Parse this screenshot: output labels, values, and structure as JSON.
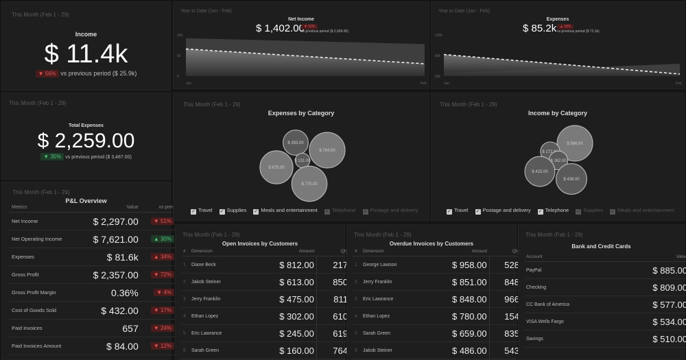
{
  "period_month": "This Month (Feb 1 - 29)",
  "period_ytd": "Year to Date (Jan - Feb)",
  "income": {
    "title": "Income",
    "value": "$ 11.4k",
    "delta": "▼ 56%",
    "vs": "vs previous period ($ 25.9k)"
  },
  "total_expenses": {
    "title": "Total Expenses",
    "value": "$ 2,259.00",
    "delta": "▼ 35%",
    "vs": "vs previous period ($ 3,487.00)"
  },
  "net_income": {
    "title": "Net Income",
    "value": "$ 1,402.00",
    "delta": "▼ 53%",
    "vs": "vs previous period ($ 2,909.00)"
  },
  "expenses_ytd": {
    "title": "Expenses",
    "value": "$ 85.2k",
    "delta": "▲ 18%",
    "vs": "vs previous period ($ 72.1k)"
  },
  "colors": {
    "red": "#e05555",
    "green": "#4cc27a",
    "bg": "#1e1e1e"
  },
  "chart_data": [
    {
      "type": "area",
      "x": [
        "Jan",
        "Feb"
      ],
      "yticks": [
        "10k",
        "5k",
        "0"
      ],
      "ylim": [
        0,
        10000
      ],
      "series": [
        {
          "values": [
            6600,
            3000
          ],
          "style": "dashed"
        },
        {
          "values": [
            9200,
            7800
          ],
          "style": "area-previous"
        }
      ]
    },
    {
      "type": "area",
      "x": [
        "Jan",
        "Feb"
      ],
      "yticks": [
        "100k",
        "80k",
        "60k"
      ],
      "ylim": [
        60000,
        100000
      ],
      "series": [
        {
          "values": [
            81000,
            62000
          ],
          "style": "dashed"
        },
        {
          "values": [
            63000,
            72000
          ],
          "style": "area-previous"
        }
      ]
    },
    {
      "type": "bubble",
      "title": "Expenses by Category",
      "bubbles": [
        {
          "label": "$ 393.00",
          "value": 393
        },
        {
          "label": "$ 784.00",
          "value": 784
        },
        {
          "label": "$ 131.00",
          "value": 131
        },
        {
          "label": "$ 675.00",
          "value": 675
        },
        {
          "label": "$ 770.00",
          "value": 770
        }
      ],
      "legend": [
        {
          "label": "Travel",
          "active": true
        },
        {
          "label": "Supplies",
          "active": true
        },
        {
          "label": "Meals and entertainment",
          "active": true
        },
        {
          "label": "Telephone",
          "active": false
        },
        {
          "label": "Postage and delivery",
          "active": false
        }
      ]
    },
    {
      "type": "bubble",
      "title": "Income by Category",
      "bubbles": [
        {
          "label": "$ 586.00",
          "value": 586
        },
        {
          "label": "$ 172.00",
          "value": 172
        },
        {
          "label": "$ 162.00",
          "value": 162
        },
        {
          "label": "$ 415.00",
          "value": 415
        },
        {
          "label": "$ 436.00",
          "value": 436
        }
      ],
      "legend": [
        {
          "label": "Travel",
          "active": true
        },
        {
          "label": "Postage and delivery",
          "active": true
        },
        {
          "label": "Telephone",
          "active": true
        },
        {
          "label": "Supplies",
          "active": false
        },
        {
          "label": "Meals and entertainment",
          "active": false
        }
      ]
    }
  ],
  "pl": {
    "title": "P&L Overview",
    "headers": [
      "Metrics",
      "Value",
      "vs prev"
    ],
    "rows": [
      [
        "Net Income",
        "$ 2,297.00",
        "▼ 51%",
        "red"
      ],
      [
        "Net Operating Income",
        "$ 7,621.00",
        "▲ 30%",
        "green"
      ],
      [
        "Expenses",
        "$ 81.6k",
        "▲ 34%",
        "red"
      ],
      [
        "Gross Profit",
        "$ 2,357.00",
        "▼ 72%",
        "red"
      ],
      [
        "Gross Profit Margin",
        "0.36%",
        "▼ 4%",
        "red"
      ],
      [
        "Cost of Goods Sold",
        "$ 432.00",
        "▼ 17%",
        "red"
      ],
      [
        "Paid Invoices",
        "657",
        "▼ 24%",
        "red"
      ],
      [
        "Paid Invoices Amount",
        "$ 84.00",
        "▼ 12%",
        "red"
      ]
    ]
  },
  "open_invoices": {
    "title": "Open Invoices by Customers",
    "headers": [
      "#",
      "Dimension",
      "Amount",
      "Qty"
    ],
    "rows": [
      [
        "1",
        "Diane Beck",
        "$ 812.00",
        "217"
      ],
      [
        "2",
        "Jakob Steiner",
        "$ 613.00",
        "850"
      ],
      [
        "3",
        "Jerry Franklin",
        "$ 475.00",
        "811"
      ],
      [
        "4",
        "Ethan Lopez",
        "$ 302.00",
        "610"
      ],
      [
        "5",
        "Eric Lawrance",
        "$ 245.00",
        "619"
      ],
      [
        "6",
        "Sarah Green",
        "$ 160.00",
        "764"
      ]
    ]
  },
  "overdue_invoices": {
    "title": "Overdue Invoices by Customers",
    "headers": [
      "#",
      "Dimension",
      "Amount",
      "Qty"
    ],
    "rows": [
      [
        "1",
        "George Lawson",
        "$ 958.00",
        "528"
      ],
      [
        "2",
        "Jerry Franklin",
        "$ 851.00",
        "848"
      ],
      [
        "3",
        "Eric Lawrance",
        "$ 848.00",
        "966"
      ],
      [
        "4",
        "Ethan Lopez",
        "$ 780.00",
        "154"
      ],
      [
        "5",
        "Sarah Green",
        "$ 659.00",
        "835"
      ],
      [
        "6",
        "Jakob Steiner",
        "$ 486.00",
        "543"
      ]
    ]
  },
  "bank": {
    "title": "Bank and Credit Cards",
    "headers": [
      "Account",
      "Value"
    ],
    "rows": [
      [
        "PayPal",
        "$ 885.00"
      ],
      [
        "Checking",
        "$ 809.00"
      ],
      [
        "CC Bank of America",
        "$ 577.00"
      ],
      [
        "VISA Wells Fargo",
        "$ 534.00"
      ],
      [
        "Savings",
        "$ 510.00"
      ]
    ]
  }
}
